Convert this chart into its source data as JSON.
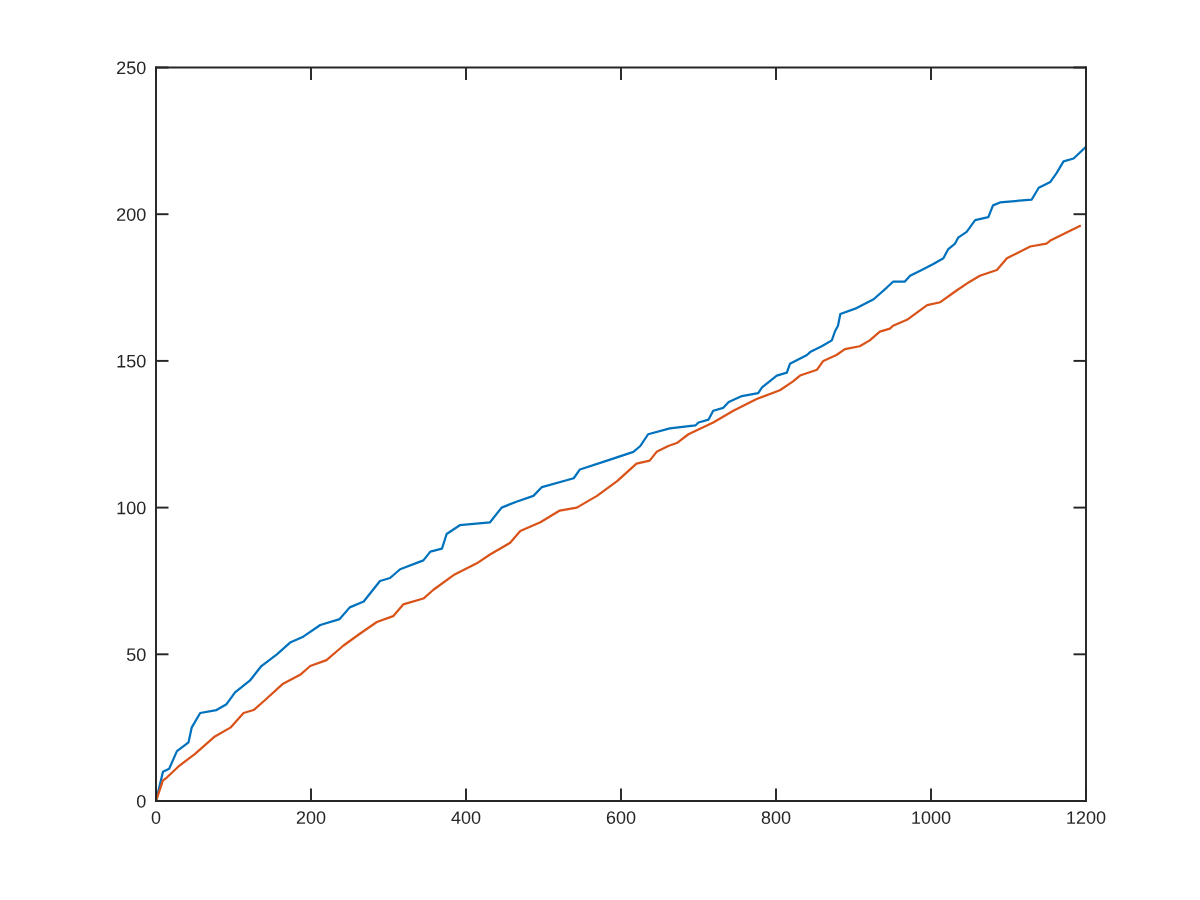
{
  "chart_data": {
    "type": "line",
    "xlim": [
      0,
      1200
    ],
    "ylim": [
      0,
      250
    ],
    "xticks": [
      0,
      200,
      400,
      600,
      800,
      1000,
      1200
    ],
    "yticks": [
      0,
      50,
      100,
      150,
      200,
      250
    ],
    "series": [
      {
        "color": "#0072bd",
        "x": [
          0,
          9,
          17,
          27,
          42,
          46,
          57,
          78,
          91,
          102,
          121,
          136,
          156,
          173,
          190,
          212,
          237,
          250,
          268,
          289,
          302,
          315,
          345,
          354,
          369,
          375,
          392,
          431,
          446,
          465,
          487,
          498,
          539,
          547,
          582,
          616,
          625,
          635,
          663,
          696,
          700,
          713,
          719,
          732,
          739,
          756,
          777,
          782,
          801,
          814,
          818,
          840,
          844,
          859,
          872,
          876,
          880,
          883,
          904,
          926,
          943,
          951,
          966,
          973,
          988,
          1003,
          1016,
          1022,
          1031,
          1035,
          1046,
          1057,
          1074,
          1080,
          1089,
          1130,
          1139,
          1154,
          1162,
          1171,
          1184,
          1200
        ],
        "values": [
          0,
          10,
          11,
          17,
          20,
          25,
          30,
          31,
          33,
          37,
          41,
          46,
          50,
          54,
          56,
          60,
          62,
          66,
          68,
          75,
          76,
          79,
          82,
          85,
          86,
          91,
          94,
          95,
          100,
          102,
          104,
          107,
          110,
          113,
          116,
          119,
          121,
          125,
          127,
          128,
          129,
          130,
          133,
          134,
          136,
          138,
          139,
          141,
          145,
          146,
          149,
          152,
          153,
          155,
          157,
          160,
          162,
          166,
          168,
          171,
          175,
          177,
          177,
          179,
          181,
          183,
          185,
          188,
          190,
          192,
          194,
          198,
          199,
          203,
          204,
          205,
          209,
          211,
          214,
          218,
          219,
          223
        ]
      },
      {
        "color": "#d95319",
        "x": [
          0,
          9,
          14,
          30,
          50,
          76,
          96,
          113,
          126,
          139,
          164,
          186,
          199,
          220,
          242,
          263,
          285,
          306,
          319,
          345,
          358,
          384,
          414,
          431,
          457,
          470,
          496,
          521,
          543,
          569,
          595,
          620,
          637,
          646,
          661,
          672,
          687,
          719,
          745,
          775,
          805,
          822,
          831,
          853,
          861,
          878,
          889,
          908,
          921,
          934,
          947,
          951,
          969,
          995,
          1012,
          1033,
          1050,
          1063,
          1085,
          1098,
          1128,
          1149,
          1154,
          1192
        ],
        "values": [
          0,
          7,
          8,
          12,
          16,
          22,
          25,
          30,
          31,
          34,
          40,
          43,
          46,
          48,
          53,
          57,
          61,
          63,
          67,
          69,
          72,
          77,
          81,
          84,
          88,
          92,
          95,
          99,
          100,
          104,
          109,
          115,
          116,
          119,
          121,
          122,
          125,
          129,
          133,
          137,
          140,
          143,
          145,
          147,
          150,
          152,
          154,
          155,
          157,
          160,
          161,
          162,
          164,
          169,
          170,
          174,
          177,
          179,
          181,
          185,
          189,
          190,
          191,
          196
        ]
      }
    ]
  }
}
